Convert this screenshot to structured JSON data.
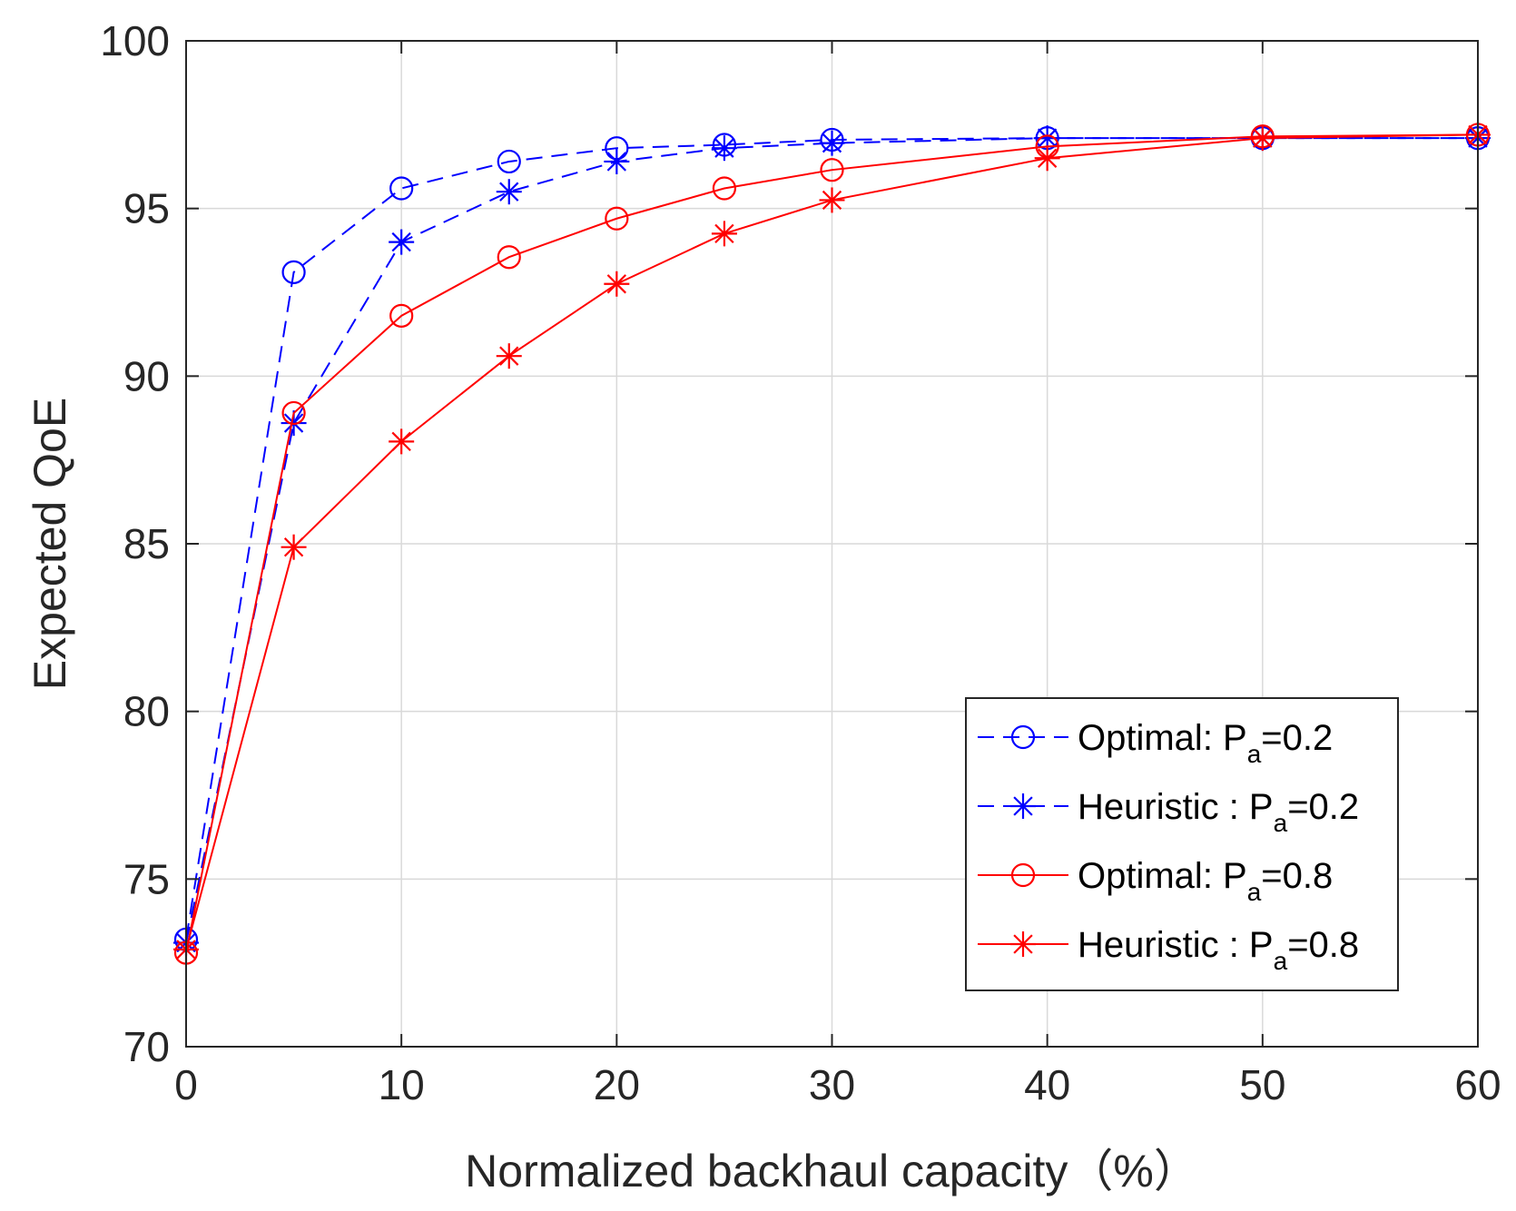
{
  "chart_data": {
    "type": "line",
    "title": "",
    "xlabel": "Normalized backhaul capacity（%）",
    "ylabel": "Expected QoE",
    "xlim": [
      0,
      60
    ],
    "ylim": [
      70,
      100
    ],
    "xticks": [
      0,
      10,
      20,
      30,
      40,
      50,
      60
    ],
    "yticks": [
      70,
      75,
      80,
      85,
      90,
      95,
      100
    ],
    "grid": true,
    "legend_position": "bottom-right",
    "series": [
      {
        "name": "Optimal: P_a=0.2",
        "legend_main": "Optimal: P",
        "legend_sub": "a",
        "legend_tail": "=0.2",
        "color": "#0000ff",
        "line_style": "dashed",
        "marker": "circle",
        "x": [
          0,
          5,
          10,
          15,
          20,
          25,
          30,
          40,
          50,
          60
        ],
        "y": [
          73.2,
          93.1,
          95.6,
          96.4,
          96.8,
          96.9,
          97.05,
          97.1,
          97.1,
          97.1
        ]
      },
      {
        "name": "Heuristic : P_a=0.2",
        "legend_main": "Heuristic : P",
        "legend_sub": "a",
        "legend_tail": "=0.2",
        "color": "#0000ff",
        "line_style": "dashed",
        "marker": "asterisk",
        "x": [
          0,
          5,
          10,
          15,
          20,
          25,
          30,
          40,
          50,
          60
        ],
        "y": [
          73.1,
          88.6,
          94.0,
          95.5,
          96.4,
          96.8,
          96.95,
          97.1,
          97.1,
          97.1
        ]
      },
      {
        "name": "Optimal: P_a=0.8",
        "legend_main": "Optimal: P",
        "legend_sub": "a",
        "legend_tail": "=0.8",
        "color": "#ff0000",
        "line_style": "solid",
        "marker": "circle",
        "x": [
          0,
          5,
          10,
          15,
          20,
          25,
          30,
          40,
          50,
          60
        ],
        "y": [
          72.8,
          88.9,
          91.8,
          93.55,
          94.7,
          95.6,
          96.15,
          96.85,
          97.15,
          97.2
        ]
      },
      {
        "name": "Heuristic : P_a=0.8",
        "legend_main": "Heuristic : P",
        "legend_sub": "a",
        "legend_tail": "=0.8",
        "color": "#ff0000",
        "line_style": "solid",
        "marker": "asterisk",
        "x": [
          0,
          5,
          10,
          15,
          20,
          25,
          30,
          40,
          50,
          60
        ],
        "y": [
          72.9,
          84.9,
          88.05,
          90.6,
          92.75,
          94.25,
          95.25,
          96.5,
          97.1,
          97.2
        ]
      }
    ]
  }
}
